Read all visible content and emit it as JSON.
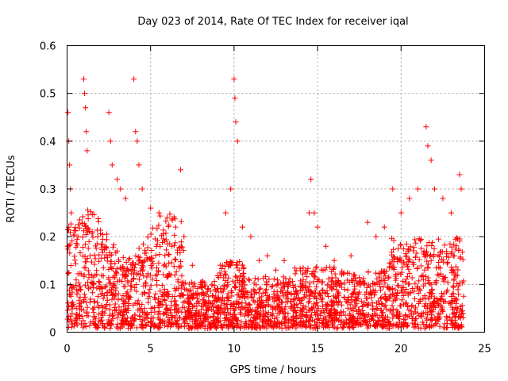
{
  "chart_data": {
    "type": "scatter",
    "title": "Day 023 of 2014, Rate Of TEC Index for receiver iqal",
    "xlabel": "GPS time / hours",
    "ylabel": "ROTI / TECUs",
    "xlim": [
      0,
      25
    ],
    "ylim": [
      0,
      0.6
    ],
    "xticks": [
      0,
      5,
      10,
      15,
      20,
      25
    ],
    "yticks": [
      0,
      0.1,
      0.2,
      0.3,
      0.4,
      0.5,
      0.6
    ],
    "xtick_labels": [
      "0",
      "5",
      "10",
      "15",
      "20",
      "25"
    ],
    "ytick_labels": [
      "0",
      "0.1",
      "0.2",
      "0.3",
      "0.4",
      "0.5",
      "0.6"
    ],
    "grid": true,
    "marker": "+",
    "series_color": "#ff0000",
    "series": [
      {
        "name": "ROTI",
        "x": [
          0.05,
          0.1,
          0.15,
          0.2,
          0.25,
          1.0,
          1.05,
          1.1,
          1.15,
          1.2,
          2.5,
          2.6,
          2.7,
          3.0,
          3.2,
          3.5,
          4.0,
          4.1,
          4.2,
          4.3,
          4.5,
          5.0,
          5.5,
          6.0,
          6.5,
          6.8,
          7.0,
          7.5,
          8.0,
          9.5,
          9.8,
          10.0,
          10.05,
          10.1,
          10.2,
          10.5,
          11.0,
          11.5,
          12.0,
          12.5,
          13.0,
          14.5,
          14.6,
          14.8,
          15.0,
          15.5,
          16.0,
          17.0,
          18.0,
          18.5,
          19.0,
          19.5,
          20.0,
          20.5,
          21.0,
          21.5,
          21.6,
          21.8,
          22.0,
          22.5,
          23.0,
          23.5,
          23.6
        ],
        "y": [
          0.46,
          0.4,
          0.35,
          0.3,
          0.25,
          0.53,
          0.5,
          0.47,
          0.42,
          0.38,
          0.46,
          0.4,
          0.35,
          0.32,
          0.3,
          0.28,
          0.53,
          0.42,
          0.4,
          0.35,
          0.3,
          0.26,
          0.25,
          0.24,
          0.22,
          0.34,
          0.2,
          0.14,
          0.1,
          0.25,
          0.3,
          0.53,
          0.49,
          0.44,
          0.4,
          0.22,
          0.2,
          0.15,
          0.16,
          0.13,
          0.15,
          0.25,
          0.32,
          0.25,
          0.22,
          0.18,
          0.15,
          0.16,
          0.23,
          0.2,
          0.22,
          0.3,
          0.25,
          0.28,
          0.3,
          0.43,
          0.39,
          0.36,
          0.3,
          0.28,
          0.25,
          0.33,
          0.3
        ]
      }
    ]
  }
}
